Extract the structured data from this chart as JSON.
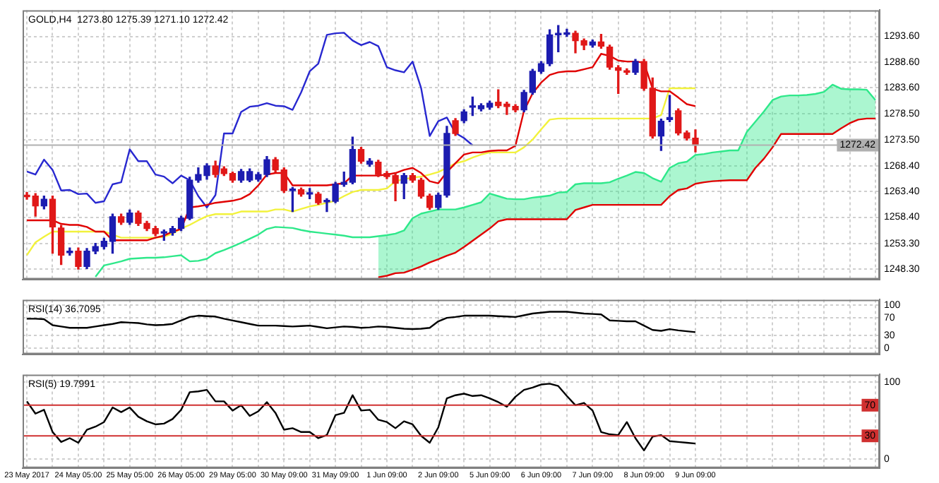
{
  "chart_data": [
    {
      "type": "candlestick",
      "title": "GOLD,H4  1273.80 1275.39 1271.10 1272.42",
      "categories": [
        null,
        null,
        null,
        null,
        null,
        null,
        null,
        null,
        null,
        null,
        null,
        null,
        null,
        null,
        null,
        null,
        null,
        null,
        null,
        null,
        null,
        null,
        null,
        null,
        null,
        null,
        null,
        null,
        null,
        null,
        null,
        null,
        null,
        null,
        null,
        null,
        null,
        null,
        null,
        null,
        null,
        null,
        null,
        null,
        null,
        null,
        null,
        null,
        null,
        null,
        null,
        null,
        null,
        null,
        null,
        null,
        null,
        null,
        null,
        null,
        null,
        null,
        null,
        null,
        null,
        null,
        null,
        null,
        null,
        null,
        null,
        null,
        null,
        null,
        null,
        null,
        null,
        null,
        null,
        null,
        null,
        null,
        null,
        null,
        null,
        null,
        null,
        null,
        null,
        null,
        null,
        null,
        null,
        null,
        null,
        null,
        null,
        null,
        null,
        null
      ],
      "ohlc": [
        [
          1262.6,
          1263.2,
          1261.9,
          1262.4
        ],
        [
          1262.5,
          1263.0,
          1258.6,
          1260.6
        ],
        [
          1260.6,
          1262.5,
          1260.0,
          1261.9
        ],
        [
          1261.9,
          1262.5,
          1251.4,
          1256.5
        ],
        [
          1256.3,
          1256.8,
          1249.2,
          1251.0
        ],
        [
          1251.5,
          1252.4,
          1251.0,
          1251.8
        ],
        [
          1251.8,
          1252.4,
          1248.3,
          1248.8
        ],
        [
          1248.8,
          1252.3,
          1248.4,
          1251.8
        ],
        [
          1251.8,
          1253.3,
          1251.3,
          1252.7
        ],
        [
          1252.7,
          1254.3,
          1252.2,
          1253.7
        ],
        [
          1253.7,
          1259.0,
          1251.4,
          1258.5
        ],
        [
          1258.5,
          1259.0,
          1257.0,
          1257.4
        ],
        [
          1257.4,
          1259.8,
          1257.0,
          1259.2
        ],
        [
          1259.2,
          1259.6,
          1256.8,
          1257.2
        ],
        [
          1257.2,
          1257.6,
          1255.8,
          1256.2
        ],
        [
          1256.2,
          1256.6,
          1254.8,
          1255.2
        ],
        [
          1255.3,
          1255.9,
          1253.9,
          1255.4
        ],
        [
          1255.4,
          1256.6,
          1254.9,
          1256.2
        ],
        [
          1256.2,
          1258.6,
          1255.8,
          1258.2
        ],
        [
          1258.2,
          1266.2,
          1257.9,
          1265.6
        ],
        [
          1265.6,
          1268.0,
          1265.2,
          1266.7
        ],
        [
          1266.5,
          1268.8,
          1265.8,
          1268.4
        ],
        [
          1268.4,
          1269.3,
          1266.2,
          1266.7
        ],
        [
          1267.8,
          1268.2,
          1266.5,
          1266.9
        ],
        [
          1266.9,
          1267.2,
          1265.2,
          1265.6
        ],
        [
          1265.6,
          1267.7,
          1265.2,
          1267.3
        ],
        [
          1265.6,
          1267.8,
          1265.3,
          1267.3
        ],
        [
          1265.8,
          1267.1,
          1265.4,
          1266.7
        ],
        [
          1266.7,
          1270.2,
          1266.3,
          1269.6
        ],
        [
          1269.6,
          1270.0,
          1267.2,
          1267.6
        ],
        [
          1267.6,
          1268.0,
          1263.2,
          1263.6
        ],
        [
          1263.6,
          1264.2,
          1259.5,
          1263.7
        ],
        [
          1263.75,
          1264.1,
          1262.5,
          1262.9
        ],
        [
          1262.9,
          1264.0,
          1262.0,
          1262.95
        ],
        [
          1262.9,
          1263.2,
          1260.9,
          1261.2
        ],
        [
          1261.4,
          1262.0,
          1259.5,
          1261.5
        ],
        [
          1261.5,
          1265.2,
          1261.2,
          1264.8
        ],
        [
          1264.8,
          1267.2,
          1264.4,
          1265.2
        ],
        [
          1265.2,
          1274.0,
          1264.9,
          1271.6
        ],
        [
          1271.6,
          1272.0,
          1268.9,
          1269.3
        ],
        [
          1268.7,
          1269.8,
          1268.3,
          1269.3
        ],
        [
          1269.1,
          1269.5,
          1266.3,
          1266.7
        ],
        [
          1266.9,
          1267.3,
          1265.9,
          1266.3
        ],
        [
          1266.5,
          1266.9,
          1261.6,
          1265.0
        ],
        [
          1265.0,
          1266.9,
          1262.0,
          1266.5
        ],
        [
          1266.5,
          1266.9,
          1265.2,
          1265.6
        ],
        [
          1265.6,
          1266.0,
          1262.1,
          1262.5
        ],
        [
          1262.5,
          1262.9,
          1259.9,
          1260.3
        ],
        [
          1260.3,
          1263.1,
          1259.9,
          1262.7
        ],
        [
          1262.7,
          1276.1,
          1262.3,
          1274.7
        ],
        [
          1277.2,
          1277.6,
          1274.3,
          1274.7
        ],
        [
          1277.2,
          1279.3,
          1276.8,
          1278.9
        ],
        [
          1279.8,
          1281.8,
          1278.2,
          1279.9
        ],
        [
          1279.5,
          1280.5,
          1279.1,
          1280.1
        ],
        [
          1279.8,
          1281.0,
          1279.4,
          1280.6
        ],
        [
          1280.8,
          1283.2,
          1279.7,
          1280.1
        ],
        [
          1280.4,
          1280.8,
          1278.4,
          1279.96
        ],
        [
          1279.96,
          1280.3,
          1278.9,
          1279.3
        ],
        [
          1279.3,
          1283.1,
          1278.9,
          1282.7
        ],
        [
          1282.7,
          1287.2,
          1282.3,
          1286.8
        ],
        [
          1286.8,
          1288.7,
          1286.4,
          1288.3
        ],
        [
          1288.3,
          1294.9,
          1287.9,
          1293.9
        ],
        [
          1293.9,
          1295.7,
          1290.6,
          1294.2
        ],
        [
          1294.0,
          1295.0,
          1293.6,
          1294.3
        ],
        [
          1294.2,
          1294.6,
          1290.4,
          1292.75
        ],
        [
          1292.75,
          1293.1,
          1291.0,
          1291.9
        ],
        [
          1291.9,
          1292.9,
          1291.5,
          1292.5
        ],
        [
          1292.5,
          1294.0,
          1291.3,
          1291.7
        ],
        [
          1291.5,
          1291.9,
          1287.2,
          1287.6
        ],
        [
          1287.5,
          1287.9,
          1282.5,
          1287.0
        ],
        [
          1286.9,
          1287.3,
          1286.2,
          1286.6
        ],
        [
          1286.6,
          1289.1,
          1286.2,
          1288.7
        ],
        [
          1288.7,
          1289.1,
          1283.1,
          1283.5
        ],
        [
          1283.5,
          1285.5,
          1273.8,
          1274.2
        ],
        [
          1274.2,
          1277.5,
          1271.4,
          1277.1
        ],
        [
          1277.4,
          1282.1,
          1277.0,
          1277.8
        ],
        [
          1279.1,
          1279.5,
          1274.4,
          1274.8
        ],
        [
          1274.8,
          1275.2,
          1273.4,
          1273.8
        ],
        [
          1273.8,
          1275.39,
          1271.1,
          1272.42
        ],
        null,
        null,
        null,
        null,
        null,
        null,
        null,
        null,
        null,
        null,
        null,
        null,
        null,
        null,
        null,
        null,
        null,
        null,
        null,
        null,
        null
      ],
      "colors": [
        "#e01818",
        "#e01818",
        "#1c1cb0",
        "#e01818",
        "#e01818",
        "#1c1cb0",
        "#e01818",
        "#1c1cb0",
        "#1c1cb0",
        "#1c1cb0",
        "#1c1cb0",
        "#e01818",
        "#1c1cb0",
        "#e01818",
        "#e01818",
        "#e01818",
        "#1c1cb0",
        "#1c1cb0",
        "#1c1cb0",
        "#1c1cb0",
        "#1c1cb0",
        "#1c1cb0",
        "#e01818",
        "#e01818",
        "#e01818",
        "#1c1cb0",
        "#1c1cb0",
        "#1c1cb0",
        "#1c1cb0",
        "#e01818",
        "#e01818",
        "#1c1cb0",
        "#e01818",
        "#1c1cb0",
        "#e01818",
        "#1c1cb0",
        "#1c1cb0",
        "#1c1cb0",
        "#1c1cb0",
        "#e01818",
        "#1c1cb0",
        "#e01818",
        "#e01818",
        "#e01818",
        "#1c1cb0",
        "#e01818",
        "#e01818",
        "#e01818",
        "#1c1cb0",
        "#1c1cb0",
        "#e01818",
        "#1c1cb0",
        "#1c1cb0",
        "#1c1cb0",
        "#1c1cb0",
        "#e01818",
        "#e01818",
        "#e01818",
        "#1c1cb0",
        "#1c1cb0",
        "#1c1cb0",
        "#1c1cb0",
        "#1c1cb0",
        "#1c1cb0",
        "#e01818",
        "#e01818",
        "#1c1cb0",
        "#e01818",
        "#e01818",
        "#e01818",
        "#e01818",
        "#1c1cb0",
        "#e01818",
        "#e01818",
        "#1c1cb0",
        "#1c1cb0",
        "#e01818",
        "#e01818",
        "#e01818",
        null,
        null,
        null,
        null,
        null,
        null,
        null,
        null,
        null,
        null,
        null,
        null,
        null,
        null,
        null,
        null,
        null,
        null,
        null,
        null,
        null
      ],
      "series": [
        {
          "type": "line",
          "color": "#e00000",
          "values": [
            1257.8,
            1257.8,
            1257.8,
            1257.8,
            1257.1,
            1256.9,
            1256.9,
            1256.5,
            1255.6,
            1255.6,
            1253.9,
            1253.9,
            1253.9,
            1253.9,
            1253.9,
            1254.4,
            1254.8,
            1255.6,
            1256.1,
            1260.3,
            1260.5,
            1260.8,
            1261.2,
            1261.4,
            1261.6,
            1262.0,
            1262.9,
            1264.6,
            1266.7,
            1267.0,
            1267.0,
            1264.6,
            1264.6,
            1264.6,
            1264.6,
            1264.6,
            1264.8,
            1265.0,
            1266.5,
            1266.5,
            1266.5,
            1266.5,
            1266.7,
            1267.0,
            1267.6,
            1268.0,
            1267.0,
            1265.4,
            1265.0,
            1267.2,
            1268.9,
            1270.6,
            1271.0,
            1271.0,
            1271.3,
            1271.4,
            1271.4,
            1272.3,
            1279.1,
            1282.5,
            1284.6,
            1286.1,
            1286.6,
            1286.8,
            1286.8,
            1287.2,
            1287.6,
            1290.2,
            1289.8,
            1288.9,
            1288.7,
            1288.7,
            1288.5,
            1283.4,
            1282.9,
            1282.9,
            1281.7,
            1280.4,
            1280.0,
            null,
            null,
            null,
            null,
            null,
            null,
            null,
            null,
            null,
            null,
            null,
            null,
            null,
            null,
            null,
            null,
            null,
            null,
            null,
            null,
            null
          ]
        },
        {
          "type": "line",
          "color": "#f2f23c",
          "values": [
            1251.0,
            1253.5,
            1254.6,
            1255.6,
            1255.6,
            1255.6,
            1255.6,
            1255.6,
            1255.6,
            1255.6,
            1255.0,
            1254.4,
            1254.4,
            1254.4,
            1254.4,
            1254.4,
            1254.6,
            1255.2,
            1256.2,
            1256.9,
            1257.8,
            1258.6,
            1259.0,
            1259.0,
            1259.0,
            1259.5,
            1259.5,
            1259.5,
            1259.5,
            1259.9,
            1259.9,
            1259.5,
            1260.0,
            1260.5,
            1260.8,
            1261.2,
            1261.6,
            1262.5,
            1263.3,
            1263.7,
            1263.7,
            1263.7,
            1264.0,
            1265.4,
            1265.8,
            1266.1,
            1266.3,
            1266.7,
            1267.2,
            1268.0,
            1268.9,
            1269.3,
            1270.0,
            1270.6,
            1271.0,
            1271.0,
            1271.0,
            1271.0,
            1272.0,
            1273.5,
            1275.5,
            1277.4,
            1277.6,
            1277.6,
            1277.6,
            1277.6,
            1277.6,
            1277.6,
            1277.6,
            1277.6,
            1277.6,
            1277.6,
            1277.6,
            1277.6,
            1278.3,
            1283.5,
            1283.5,
            1283.5,
            1283.5,
            null,
            null,
            null,
            null,
            null,
            null,
            null,
            null,
            null,
            null,
            null,
            null,
            null,
            null,
            null,
            null,
            null,
            null,
            null,
            null,
            null
          ]
        },
        {
          "type": "line",
          "color": "#2828d0",
          "values": [
            1267.3,
            1266.7,
            1269.6,
            1267.6,
            1263.6,
            1263.7,
            1262.9,
            1263.0,
            1261.2,
            1261.5,
            1264.8,
            1265.2,
            1271.6,
            1269.3,
            1269.3,
            1266.7,
            1266.3,
            1265.0,
            1266.5,
            1265.6,
            1262.5,
            1260.3,
            1262.7,
            1274.7,
            1274.7,
            1278.9,
            1279.9,
            1280.1,
            1280.6,
            1280.1,
            1280.0,
            1279.3,
            1282.7,
            1286.8,
            1288.3,
            1293.9,
            1294.2,
            1294.3,
            1292.8,
            1291.9,
            1292.5,
            1291.7,
            1287.6,
            1287.0,
            1286.6,
            1288.7,
            1283.5,
            1274.2,
            1277.1,
            1277.8,
            1274.8,
            1273.8,
            1272.4,
            null,
            null,
            null,
            null,
            null,
            null,
            null,
            null,
            null,
            null,
            null,
            null,
            null,
            null,
            null,
            null,
            null,
            null,
            null,
            null,
            null,
            null,
            null,
            null,
            null,
            null,
            null,
            null,
            null,
            null,
            null,
            null,
            null,
            null,
            null,
            null,
            null,
            null,
            null,
            null,
            null,
            null,
            null,
            null,
            null,
            null,
            null
          ]
        },
        {
          "type": "line",
          "color": "#2ee88a",
          "values": [
            null,
            null,
            null,
            null,
            null,
            null,
            null,
            null,
            1246.8,
            1249.0,
            1249.4,
            1249.8,
            1250.3,
            1250.4,
            1250.5,
            1250.5,
            1250.6,
            1250.8,
            1251.0,
            1249.8,
            1249.9,
            1250.3,
            1251.4,
            1252.0,
            1252.7,
            1253.4,
            1254.2,
            1255.0,
            1256.1,
            1256.5,
            1256.4,
            1256.3,
            1255.9,
            1255.6,
            1255.4,
            1255.2,
            1255.0,
            1254.8,
            1254.5,
            1254.5,
            1254.5,
            1254.7,
            1254.9,
            1255.2,
            1255.8,
            1258.2,
            1259.1,
            1259.5,
            1259.9,
            1259.9,
            1259.9,
            1260.3,
            1260.8,
            1261.3,
            1263.0,
            1262.5,
            1262.0,
            1261.9,
            1261.9,
            1262.2,
            1262.4,
            1262.6,
            1263.2,
            1263.3,
            1264.8,
            1265.0,
            1265.0,
            1265.0,
            1265.2,
            1265.9,
            1266.5,
            1267.2,
            1267.0,
            1266.0,
            1265.3,
            1268.0,
            1268.9,
            1269.2,
            1270.5,
            1270.7,
            1271.0,
            1271.2,
            1271.4,
            1271.4,
            1275.0,
            1277.0,
            1279.0,
            1281.2,
            1281.9,
            1282.1,
            1282.1,
            1282.2,
            1282.4,
            1282.8,
            1284.2,
            1283.4,
            1283.3,
            1283.3,
            1283.2,
            1281.2
          ],
          "upper": [
            null,
            null,
            null,
            null,
            null,
            null,
            null,
            null,
            null,
            null,
            null,
            null,
            null,
            null,
            null,
            null,
            null,
            null,
            null,
            null,
            null,
            null,
            null,
            null,
            null,
            null,
            null,
            null,
            null,
            null,
            null,
            null,
            null,
            null,
            null,
            null,
            null,
            null,
            null,
            null,
            null,
            1254.7,
            1254.9,
            1255.2,
            1255.8,
            1258.2,
            1259.1,
            1259.5,
            1259.9,
            1259.9,
            1259.9,
            1260.3,
            1260.8,
            1261.3,
            1263.0,
            1262.5,
            1262.0,
            1261.9,
            1261.9,
            1262.2,
            1262.4,
            1262.6,
            1263.2,
            1263.3,
            1264.8,
            1265.0,
            1265.0,
            1265.0,
            1265.2,
            1265.9,
            1266.5,
            1267.2,
            1267.0,
            1266.0,
            1265.3,
            1268.0,
            1268.9,
            1269.2,
            1270.5,
            1270.7,
            1271.0,
            1271.2,
            1271.4,
            1271.4,
            1275.0,
            1277.0,
            1279.0,
            1281.2,
            1281.9,
            1282.1,
            1282.1,
            1282.2,
            1282.4,
            1282.8,
            1284.2,
            1283.4,
            1283.3,
            1283.3,
            1283.2,
            1281.2
          ],
          "lower": [
            null,
            null,
            null,
            null,
            null,
            null,
            null,
            null,
            null,
            null,
            null,
            null,
            null,
            null,
            null,
            null,
            null,
            null,
            null,
            null,
            null,
            null,
            null,
            null,
            null,
            null,
            null,
            null,
            null,
            null,
            null,
            null,
            null,
            null,
            null,
            null,
            null,
            null,
            null,
            null,
            null,
            1246.7,
            1247.0,
            1247.5,
            1247.6,
            1248.2,
            1248.8,
            1249.6,
            1250.2,
            1250.9,
            1251.5,
            1252.6,
            1253.8,
            1255.0,
            1256.2,
            1257.6,
            1258.0,
            1258.0,
            1258.0,
            1258.0,
            1258.0,
            1258.0,
            1258.0,
            1258.0,
            1259.8,
            1260.3,
            1260.8,
            1260.8,
            1260.8,
            1260.8,
            1260.8,
            1260.8,
            1260.8,
            1260.8,
            1260.8,
            1262.5,
            1263.7,
            1264.0,
            1264.9,
            1265.2,
            1265.4,
            1265.5,
            1265.6,
            1265.6,
            1265.6,
            1268.0,
            1269.8,
            1272.0,
            1274.6,
            1274.6,
            1274.6,
            1274.6,
            1274.6,
            1274.6,
            1274.6,
            1275.7,
            1276.7,
            1277.4,
            1277.6,
            1277.6
          ]
        },
        {
          "type": "line",
          "color": "#e00000",
          "values": [
            null,
            null,
            null,
            null,
            null,
            null,
            null,
            null,
            null,
            null,
            null,
            null,
            null,
            null,
            null,
            null,
            null,
            null,
            null,
            null,
            null,
            null,
            null,
            null,
            null,
            null,
            null,
            null,
            null,
            null,
            null,
            null,
            null,
            null,
            null,
            null,
            null,
            null,
            null,
            null,
            null,
            1246.7,
            1247.0,
            1247.5,
            1247.6,
            1248.2,
            1248.8,
            1249.6,
            1250.2,
            1250.9,
            1251.5,
            1252.6,
            1253.8,
            1255.0,
            1256.2,
            1257.6,
            1258.0,
            1258.0,
            1258.0,
            1258.0,
            1258.0,
            1258.0,
            1258.0,
            1258.0,
            1259.8,
            1260.3,
            1260.8,
            1260.8,
            1260.8,
            1260.8,
            1260.8,
            1260.8,
            1260.8,
            1260.8,
            1260.8,
            1262.5,
            1263.7,
            1264.0,
            1264.9,
            1265.2,
            1265.4,
            1265.5,
            1265.6,
            1265.6,
            1265.6,
            1268.0,
            1269.8,
            1272.0,
            1274.6,
            1274.6,
            1274.6,
            1274.6,
            1274.6,
            1274.6,
            1274.6,
            1275.7,
            1276.7,
            1277.4,
            1277.6,
            1277.6
          ]
        }
      ],
      "ylim": [
        1246.3,
        1298.7
      ],
      "yticks": [
        {
          "value": 1248.3,
          "label": "1248.30"
        },
        {
          "value": 1253.3,
          "label": "1253.30"
        },
        {
          "value": 1258.4,
          "label": "1258.40"
        },
        {
          "value": 1263.4,
          "label": "1263.40"
        },
        {
          "value": 1268.4,
          "label": "1268.40"
        },
        {
          "value": 1273.5,
          "label": "1273.50"
        },
        {
          "value": 1278.5,
          "label": "1278.50"
        },
        {
          "value": 1283.6,
          "label": "1283.60"
        },
        {
          "value": 1288.6,
          "label": "1288.60"
        },
        {
          "value": 1293.6,
          "label": "1293.60"
        }
      ],
      "ref_lines": [
        {
          "axis": "y",
          "value": 1272.42,
          "label": "1272.42",
          "color": "#b0b0b0"
        }
      ],
      "grid": true,
      "tick_labels": "y"
    },
    {
      "type": "line",
      "title": "RSI(14) 36.7095",
      "categories": [
        null,
        null,
        null,
        null,
        null,
        null,
        null,
        null,
        null,
        null,
        null,
        null,
        null,
        null,
        null,
        null,
        null,
        null,
        null,
        null,
        null,
        null,
        null,
        null,
        null,
        null,
        null,
        null,
        null,
        null,
        null,
        null,
        null,
        null,
        null,
        null,
        null,
        null,
        null,
        null,
        null,
        null,
        null,
        null,
        null,
        null,
        null,
        null,
        null,
        null,
        null,
        null,
        null,
        null,
        null,
        null,
        null,
        null,
        null,
        null,
        null,
        null,
        null,
        null,
        null,
        null,
        null,
        null,
        null,
        null,
        null,
        null,
        null,
        null,
        null,
        null,
        null,
        null,
        null,
        null,
        null,
        null,
        null,
        null,
        null,
        null,
        null,
        null,
        null,
        null,
        null,
        null,
        null,
        null,
        null,
        null,
        null,
        null,
        null,
        null
      ],
      "series": [
        {
          "color": "#000000",
          "values": [
            68,
            68,
            67,
            53,
            50,
            47,
            47,
            47,
            50,
            53,
            56,
            60,
            59,
            58,
            55,
            53,
            54,
            56,
            64,
            72,
            75,
            74,
            73,
            68,
            64,
            60,
            56,
            52,
            52,
            52,
            51,
            50,
            51,
            52,
            49,
            46,
            48,
            50,
            49,
            47,
            48,
            50,
            49,
            47,
            45,
            44,
            45,
            47,
            62,
            70,
            72,
            75,
            75,
            75,
            75,
            74,
            73,
            72,
            76,
            80,
            82,
            84,
            84,
            84,
            82,
            80,
            79,
            78,
            64,
            63,
            62,
            62,
            52,
            42,
            40,
            44,
            41,
            39,
            37,
            null,
            null,
            null,
            null,
            null,
            null,
            null,
            null,
            null,
            null,
            null,
            null,
            null,
            null,
            null,
            null,
            null,
            null,
            null,
            null,
            null
          ]
        }
      ],
      "ylim": [
        -14,
        112
      ],
      "yticks": [
        0,
        30,
        70,
        100
      ],
      "grid": true,
      "tick_labels": "y"
    },
    {
      "type": "line",
      "title": "RSI(5) 19.7991",
      "categories": [
        "23 May 2017",
        null,
        null,
        null,
        null,
        null,
        "24 May 05:00",
        null,
        null,
        null,
        null,
        null,
        "25 May 05:00",
        null,
        null,
        null,
        null,
        null,
        "26 May 05:00",
        null,
        null,
        null,
        null,
        null,
        "29 May 05:00",
        null,
        null,
        null,
        null,
        null,
        "30 May 09:00",
        null,
        null,
        null,
        null,
        null,
        "31 May 09:00",
        null,
        null,
        null,
        null,
        null,
        "1 Jun 09:00",
        null,
        null,
        null,
        null,
        null,
        "2 Jun 09:00",
        null,
        null,
        null,
        null,
        null,
        "5 Jun 09:00",
        null,
        null,
        null,
        null,
        null,
        "6 Jun 09:00",
        null,
        null,
        null,
        null,
        null,
        "7 Jun 09:00",
        null,
        null,
        null,
        null,
        null,
        "8 Jun 09:00",
        null,
        null,
        null,
        null,
        null,
        "9 Jun 09:00",
        null,
        null,
        null,
        null,
        null,
        null,
        null,
        null,
        null,
        null,
        null,
        null,
        null,
        null,
        null,
        null,
        null,
        null,
        null,
        null,
        null
      ],
      "series": [
        {
          "color": "#000000",
          "values": [
            75,
            59,
            64,
            35,
            22,
            27,
            21,
            38,
            42,
            48,
            67,
            61,
            67,
            55,
            49,
            45,
            46,
            52,
            64,
            87,
            88,
            90,
            75,
            75,
            63,
            70,
            56,
            62,
            74,
            60,
            38,
            40,
            35,
            35,
            27,
            31,
            57,
            60,
            83,
            63,
            64,
            51,
            48,
            40,
            49,
            45,
            30,
            21,
            41,
            79,
            83,
            85,
            82,
            83,
            79,
            74,
            68,
            81,
            90,
            93,
            97,
            98,
            95,
            82,
            70,
            73,
            63,
            35,
            32,
            31,
            48,
            27,
            11,
            29,
            31,
            23,
            22,
            21,
            20,
            null,
            null,
            null,
            null,
            null,
            null,
            null,
            null,
            null,
            null,
            null,
            null,
            null,
            null,
            null,
            null,
            null,
            null,
            null,
            null,
            null
          ]
        }
      ],
      "ylim": [
        -12,
        110
      ],
      "yticks": [
        0,
        100
      ],
      "ref_lines": [
        {
          "axis": "y",
          "value": 70,
          "label": "70",
          "color": "#d03030"
        },
        {
          "axis": "y",
          "value": 30,
          "label": "30",
          "color": "#d03030"
        }
      ],
      "grid": true
    }
  ]
}
